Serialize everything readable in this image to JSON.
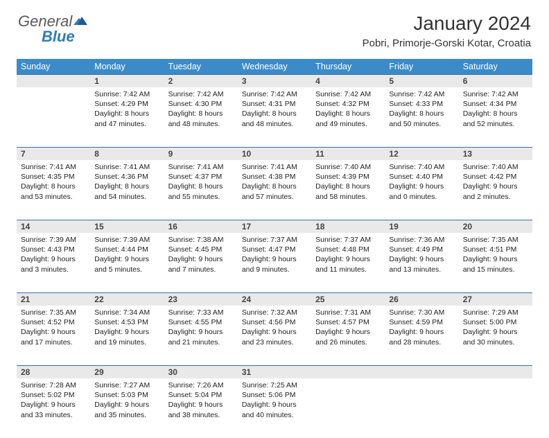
{
  "brand": {
    "part1": "General",
    "part2": "Blue"
  },
  "title": "January 2024",
  "location": "Pobri, Primorje-Gorski Kotar, Croatia",
  "colors": {
    "header_bg": "#3b8bc9",
    "header_text": "#ffffff",
    "daynum_bg": "#e9e9e9",
    "rule": "#3b6ea3",
    "logo_gray": "#5a5a5a",
    "logo_blue": "#2f7ac0"
  },
  "weekdays": [
    "Sunday",
    "Monday",
    "Tuesday",
    "Wednesday",
    "Thursday",
    "Friday",
    "Saturday"
  ],
  "weeks": [
    [
      {
        "blank": true
      },
      {
        "n": "1",
        "sr": "7:42 AM",
        "ss": "4:29 PM",
        "dl": "8 hours and 47 minutes."
      },
      {
        "n": "2",
        "sr": "7:42 AM",
        "ss": "4:30 PM",
        "dl": "8 hours and 48 minutes."
      },
      {
        "n": "3",
        "sr": "7:42 AM",
        "ss": "4:31 PM",
        "dl": "8 hours and 48 minutes."
      },
      {
        "n": "4",
        "sr": "7:42 AM",
        "ss": "4:32 PM",
        "dl": "8 hours and 49 minutes."
      },
      {
        "n": "5",
        "sr": "7:42 AM",
        "ss": "4:33 PM",
        "dl": "8 hours and 50 minutes."
      },
      {
        "n": "6",
        "sr": "7:42 AM",
        "ss": "4:34 PM",
        "dl": "8 hours and 52 minutes."
      }
    ],
    [
      {
        "n": "7",
        "sr": "7:41 AM",
        "ss": "4:35 PM",
        "dl": "8 hours and 53 minutes."
      },
      {
        "n": "8",
        "sr": "7:41 AM",
        "ss": "4:36 PM",
        "dl": "8 hours and 54 minutes."
      },
      {
        "n": "9",
        "sr": "7:41 AM",
        "ss": "4:37 PM",
        "dl": "8 hours and 55 minutes."
      },
      {
        "n": "10",
        "sr": "7:41 AM",
        "ss": "4:38 PM",
        "dl": "8 hours and 57 minutes."
      },
      {
        "n": "11",
        "sr": "7:40 AM",
        "ss": "4:39 PM",
        "dl": "8 hours and 58 minutes."
      },
      {
        "n": "12",
        "sr": "7:40 AM",
        "ss": "4:40 PM",
        "dl": "9 hours and 0 minutes."
      },
      {
        "n": "13",
        "sr": "7:40 AM",
        "ss": "4:42 PM",
        "dl": "9 hours and 2 minutes."
      }
    ],
    [
      {
        "n": "14",
        "sr": "7:39 AM",
        "ss": "4:43 PM",
        "dl": "9 hours and 3 minutes."
      },
      {
        "n": "15",
        "sr": "7:39 AM",
        "ss": "4:44 PM",
        "dl": "9 hours and 5 minutes."
      },
      {
        "n": "16",
        "sr": "7:38 AM",
        "ss": "4:45 PM",
        "dl": "9 hours and 7 minutes."
      },
      {
        "n": "17",
        "sr": "7:37 AM",
        "ss": "4:47 PM",
        "dl": "9 hours and 9 minutes."
      },
      {
        "n": "18",
        "sr": "7:37 AM",
        "ss": "4:48 PM",
        "dl": "9 hours and 11 minutes."
      },
      {
        "n": "19",
        "sr": "7:36 AM",
        "ss": "4:49 PM",
        "dl": "9 hours and 13 minutes."
      },
      {
        "n": "20",
        "sr": "7:35 AM",
        "ss": "4:51 PM",
        "dl": "9 hours and 15 minutes."
      }
    ],
    [
      {
        "n": "21",
        "sr": "7:35 AM",
        "ss": "4:52 PM",
        "dl": "9 hours and 17 minutes."
      },
      {
        "n": "22",
        "sr": "7:34 AM",
        "ss": "4:53 PM",
        "dl": "9 hours and 19 minutes."
      },
      {
        "n": "23",
        "sr": "7:33 AM",
        "ss": "4:55 PM",
        "dl": "9 hours and 21 minutes."
      },
      {
        "n": "24",
        "sr": "7:32 AM",
        "ss": "4:56 PM",
        "dl": "9 hours and 23 minutes."
      },
      {
        "n": "25",
        "sr": "7:31 AM",
        "ss": "4:57 PM",
        "dl": "9 hours and 26 minutes."
      },
      {
        "n": "26",
        "sr": "7:30 AM",
        "ss": "4:59 PM",
        "dl": "9 hours and 28 minutes."
      },
      {
        "n": "27",
        "sr": "7:29 AM",
        "ss": "5:00 PM",
        "dl": "9 hours and 30 minutes."
      }
    ],
    [
      {
        "n": "28",
        "sr": "7:28 AM",
        "ss": "5:02 PM",
        "dl": "9 hours and 33 minutes."
      },
      {
        "n": "29",
        "sr": "7:27 AM",
        "ss": "5:03 PM",
        "dl": "9 hours and 35 minutes."
      },
      {
        "n": "30",
        "sr": "7:26 AM",
        "ss": "5:04 PM",
        "dl": "9 hours and 38 minutes."
      },
      {
        "n": "31",
        "sr": "7:25 AM",
        "ss": "5:06 PM",
        "dl": "9 hours and 40 minutes."
      },
      {
        "blank": true
      },
      {
        "blank": true
      },
      {
        "blank": true
      }
    ]
  ],
  "labels": {
    "sunrise": "Sunrise:",
    "sunset": "Sunset:",
    "daylight": "Daylight:"
  }
}
